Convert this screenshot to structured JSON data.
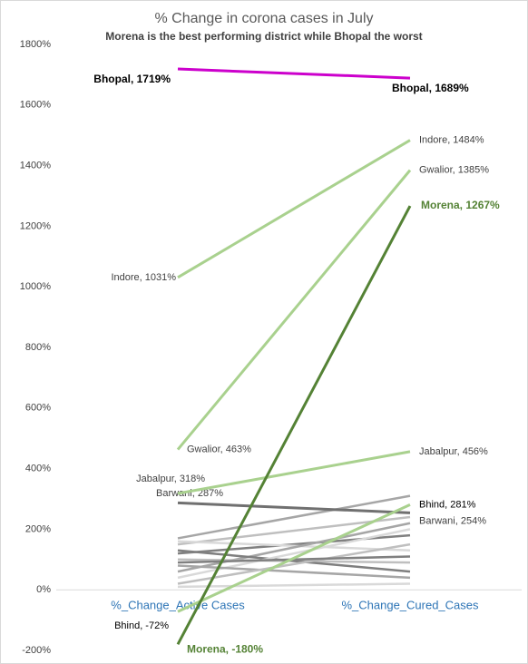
{
  "chart_data": {
    "type": "slope",
    "title": "% Change in corona cases in July",
    "subtitle": "Morena is the best performing district while Bhopal the worst",
    "categories": [
      "%_Change_Active Cases",
      "%_Change_Cured_Cases"
    ],
    "ylim": [
      -200,
      1800
    ],
    "yticks": [
      {
        "value": -200,
        "label": "-200%"
      },
      {
        "value": 0,
        "label": "0%"
      },
      {
        "value": 200,
        "label": "200%"
      },
      {
        "value": 400,
        "label": "400%"
      },
      {
        "value": 600,
        "label": "600%"
      },
      {
        "value": 800,
        "label": "800%"
      },
      {
        "value": 1000,
        "label": "1000%"
      },
      {
        "value": 1200,
        "label": "1200%"
      },
      {
        "value": 1400,
        "label": "1400%"
      },
      {
        "value": 1600,
        "label": "1600%"
      },
      {
        "value": 1800,
        "label": "1800%"
      }
    ],
    "series": [
      {
        "color": "#a6a6a6",
        "values": [
          170,
          310
        ]
      },
      {
        "color": "#bfbfbf",
        "values": [
          150,
          240
        ]
      },
      {
        "color": "#808080",
        "values": [
          120,
          180
        ]
      },
      {
        "color": "#d9d9d9",
        "values": [
          160,
          130
        ]
      },
      {
        "color": "#a6a6a6",
        "values": [
          60,
          220
        ]
      },
      {
        "color": "#bfbfbf",
        "values": [
          100,
          90
        ]
      },
      {
        "color": "#7f7f7f",
        "values": [
          130,
          60
        ]
      },
      {
        "color": "#d9d9d9",
        "values": [
          40,
          200
        ]
      },
      {
        "color": "#a6a6a6",
        "values": [
          80,
          40
        ]
      },
      {
        "color": "#bfbfbf",
        "values": [
          20,
          150
        ]
      },
      {
        "color": "#808080",
        "values": [
          90,
          110
        ]
      },
      {
        "color": "#d9d9d9",
        "values": [
          10,
          20
        ]
      },
      {
        "name": "Barwani",
        "color": "#707070",
        "values": [
          287,
          254
        ],
        "value_labels": [
          "Barwani, 287%",
          "Barwani, 254%"
        ]
      },
      {
        "name": "Bhind",
        "color": "#a9d18e",
        "values": [
          -72,
          281
        ],
        "value_labels": [
          "Bhind, -72%",
          "Bhind, 281%"
        ]
      },
      {
        "name": "Jabalpur",
        "color": "#a9d18e",
        "values": [
          318,
          456
        ],
        "value_labels": [
          "Jabalpur, 318%",
          "Jabalpur, 456%"
        ]
      },
      {
        "name": "Gwalior",
        "color": "#a9d18e",
        "values": [
          463,
          1385
        ],
        "value_labels": [
          "Gwalior, 463%",
          "Gwalior, 1385%"
        ]
      },
      {
        "name": "Indore",
        "color": "#a9d18e",
        "values": [
          1031,
          1484
        ],
        "value_labels": [
          "Indore, 1031%",
          "Indore, 1484%"
        ]
      },
      {
        "name": "Morena",
        "color": "#548235",
        "values": [
          -180,
          1267
        ],
        "value_labels": [
          "Morena, -180%",
          "Morena, 1267%"
        ]
      },
      {
        "name": "Bhopal",
        "color": "#cc00cc",
        "values": [
          1719,
          1689
        ],
        "value_labels": [
          "Bhopal, 1719%",
          "Bhopal, 1689%"
        ]
      }
    ]
  }
}
